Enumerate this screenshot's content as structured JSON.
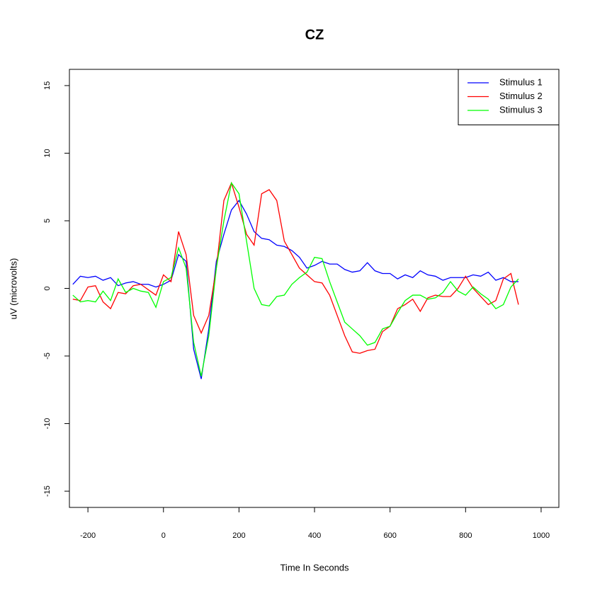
{
  "chart_data": {
    "type": "line",
    "title": "CZ",
    "x_label": "Time In Seconds",
    "y_label": "uV (microvolts)",
    "x": [
      -240,
      -220,
      -200,
      -180,
      -160,
      -140,
      -120,
      -100,
      -80,
      -60,
      -40,
      -20,
      0,
      20,
      40,
      60,
      80,
      100,
      120,
      140,
      160,
      180,
      200,
      220,
      240,
      260,
      280,
      300,
      320,
      340,
      360,
      380,
      400,
      420,
      440,
      460,
      480,
      500,
      520,
      540,
      560,
      580,
      600,
      620,
      640,
      660,
      680,
      700,
      720,
      740,
      760,
      780,
      800,
      820,
      840,
      860,
      880,
      900,
      920,
      940
    ],
    "series": [
      {
        "name": "Stimulus 1",
        "color": "#0000ff",
        "values": [
          0.3,
          0.9,
          0.8,
          0.9,
          0.6,
          0.8,
          0.2,
          0.4,
          0.5,
          0.3,
          0.3,
          0.1,
          0.3,
          0.6,
          2.5,
          2.0,
          -4.5,
          -6.7,
          -3,
          2.0,
          4.0,
          5.8,
          6.5,
          5.5,
          4.2,
          3.7,
          3.6,
          3.2,
          3.1,
          2.8,
          2.3,
          1.5,
          1.7,
          2.0,
          1.8,
          1.8,
          1.4,
          1.2,
          1.3,
          1.9,
          1.3,
          1.1,
          1.1,
          0.7,
          1.0,
          0.8,
          1.3,
          1.0,
          0.9,
          0.6,
          0.8,
          0.8,
          0.8,
          1.0,
          0.9,
          1.2,
          0.6,
          0.8,
          0.5,
          0.5
        ]
      },
      {
        "name": "Stimulus 2",
        "color": "#ff0000",
        "values": [
          -0.8,
          -0.9,
          0.1,
          0.2,
          -1.0,
          -1.5,
          -0.3,
          -0.4,
          0.2,
          0.3,
          -0.1,
          -0.5,
          1.0,
          0.5,
          4.2,
          2.5,
          -2.0,
          -3.3,
          -2.0,
          1.5,
          6.5,
          7.8,
          6.0,
          4.0,
          3.2,
          7.0,
          7.3,
          6.5,
          3.5,
          2.5,
          1.5,
          1.0,
          0.5,
          0.4,
          -0.5,
          -2.0,
          -3.5,
          -4.7,
          -4.8,
          -4.6,
          -4.5,
          -3.2,
          -2.8,
          -1.5,
          -1.2,
          -0.8,
          -1.7,
          -0.7,
          -0.5,
          -0.6,
          -0.6,
          0.0,
          0.9,
          0.0,
          -0.6,
          -1.2,
          -0.9,
          0.7,
          1.1,
          -1.2
        ]
      },
      {
        "name": "Stimulus 3",
        "color": "#00ff00",
        "values": [
          -0.5,
          -1.0,
          -0.9,
          -1.0,
          -0.2,
          -0.9,
          0.7,
          -0.3,
          0.0,
          -0.2,
          -0.3,
          -1.4,
          0.5,
          0.8,
          3.0,
          1.5,
          -4.0,
          -6.5,
          -3.5,
          1.5,
          5.0,
          7.8,
          7.0,
          3.5,
          0.0,
          -1.2,
          -1.3,
          -0.6,
          -0.5,
          0.3,
          0.8,
          1.2,
          2.3,
          2.2,
          0.5,
          -1.0,
          -2.5,
          -3.0,
          -3.5,
          -4.2,
          -4.0,
          -3.0,
          -2.8,
          -1.8,
          -0.9,
          -0.5,
          -0.5,
          -0.8,
          -0.7,
          -0.3,
          0.5,
          -0.2,
          -0.5,
          0.1,
          -0.4,
          -0.8,
          -1.5,
          -1.2,
          0.1,
          0.7
        ]
      }
    ],
    "xlim": [
      -249,
      1047
    ],
    "ylim": [
      -16.2,
      16.2
    ],
    "xticks": [
      -200,
      0,
      200,
      400,
      600,
      800,
      1000
    ],
    "yticks": [
      -15,
      -10,
      -5,
      0,
      5,
      10,
      15
    ],
    "legend": "topright"
  }
}
